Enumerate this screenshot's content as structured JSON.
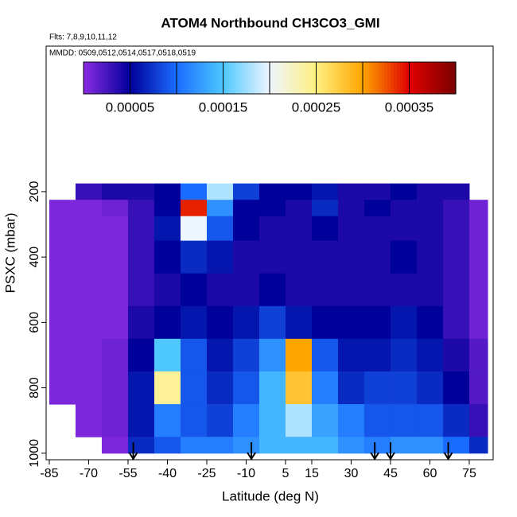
{
  "chart_data": {
    "type": "heatmap",
    "title": "ATOM4 Northbound CH3CO3_GMI",
    "subtitle": "Flts: 7,8,9,10,11,12",
    "annotation": "MMDD: 0509,0512,0514,0517,0518,0519",
    "x_label": "Latitude (deg N)",
    "y_label": "PSXC (mbar)",
    "xlim": [
      -86.2,
      84.1
    ],
    "xticks": [
      -85,
      -70,
      -55,
      -40,
      -25,
      -10,
      5,
      15,
      30,
      45,
      60,
      75
    ],
    "ylim": [
      1020,
      -245
    ],
    "yticks": [
      200,
      400,
      600,
      800,
      1000
    ],
    "lat_edges": [
      -85,
      -75,
      -65,
      -55,
      -45,
      -35,
      -25,
      -15,
      -5,
      5,
      15,
      25,
      35,
      45,
      55,
      65,
      75,
      82
    ],
    "pressure_edges": [
      175,
      225,
      275,
      350,
      450,
      550,
      650,
      750,
      850,
      950,
      1000
    ],
    "values": [
      [
        null,
        3e-05,
        4e-05,
        4e-05,
        5e-05,
        0.0001,
        0.00018,
        8e-05,
        5e-05,
        5e-05,
        6e-05,
        4e-05,
        4e-05,
        5e-05,
        4e-05,
        4e-05,
        null
      ],
      [
        5e-06,
        5e-06,
        1e-05,
        3e-05,
        5e-05,
        0.00034,
        0.00012,
        5e-05,
        5e-05,
        4e-05,
        7e-05,
        4e-05,
        5e-05,
        4e-05,
        4e-05,
        3e-05,
        1e-05
      ],
      [
        5e-06,
        5e-06,
        5e-06,
        3e-05,
        6e-05,
        0.0002,
        9e-05,
        5e-05,
        4e-05,
        4e-05,
        5e-05,
        4e-05,
        4e-05,
        4e-05,
        4e-05,
        3e-05,
        1e-05
      ],
      [
        5e-06,
        5e-06,
        5e-06,
        3e-05,
        5e-05,
        7e-05,
        6e-05,
        4e-05,
        4e-05,
        4e-05,
        4e-05,
        4e-05,
        4e-05,
        5e-05,
        4e-05,
        3e-05,
        1e-05
      ],
      [
        5e-06,
        5e-06,
        5e-06,
        3e-05,
        4e-05,
        5e-05,
        4e-05,
        4e-05,
        5e-05,
        4e-05,
        4e-05,
        4e-05,
        4e-05,
        4e-05,
        4e-05,
        3e-05,
        1e-05
      ],
      [
        5e-06,
        5e-06,
        5e-06,
        4e-05,
        5e-05,
        6e-05,
        5e-05,
        6e-05,
        8e-05,
        6e-05,
        5e-05,
        5e-05,
        5e-05,
        6e-05,
        5e-05,
        3e-05,
        1e-05
      ],
      [
        5e-06,
        5e-06,
        1e-05,
        5e-05,
        0.00015,
        9e-05,
        6e-05,
        8e-05,
        0.00012,
        0.0003,
        9e-05,
        6e-05,
        6e-05,
        7e-05,
        6e-05,
        4e-05,
        2e-05
      ],
      [
        5e-06,
        5e-06,
        1e-05,
        6e-05,
        0.00024,
        9e-05,
        7e-05,
        9e-05,
        0.00014,
        0.00028,
        0.00011,
        7e-05,
        8e-05,
        8e-05,
        7e-05,
        5e-05,
        2e-05
      ],
      [
        null,
        5e-06,
        1e-05,
        6e-05,
        0.00011,
        9e-05,
        8e-05,
        0.00011,
        0.00014,
        0.00018,
        0.00013,
        0.00011,
        9e-05,
        9e-05,
        9e-05,
        7e-05,
        3e-05
      ],
      [
        null,
        null,
        5e-06,
        7e-05,
        9e-05,
        0.00011,
        0.00011,
        0.00012,
        0.00014,
        0.00014,
        0.00014,
        0.00012,
        0.00011,
        0.00012,
        0.00012,
        0.0001,
        7e-05
      ]
    ],
    "clim": [
      0,
      0.0004
    ],
    "colorbar_ticks": [
      5e-05,
      0.00015,
      0.00025,
      0.00035
    ],
    "colorbar_breaks": [
      5e-05,
      0.0001,
      0.00015,
      0.0002,
      0.00025,
      0.0003,
      0.00035,
      0.0004
    ],
    "colors": [
      "#8a2be2",
      "#00009a",
      "#1a6cff",
      "#4ec8ff",
      "#eef6ff",
      "#fff080",
      "#ffa500",
      "#e00000",
      "#7a0000"
    ],
    "arrows": [
      -53,
      -8,
      39,
      45,
      67
    ]
  }
}
